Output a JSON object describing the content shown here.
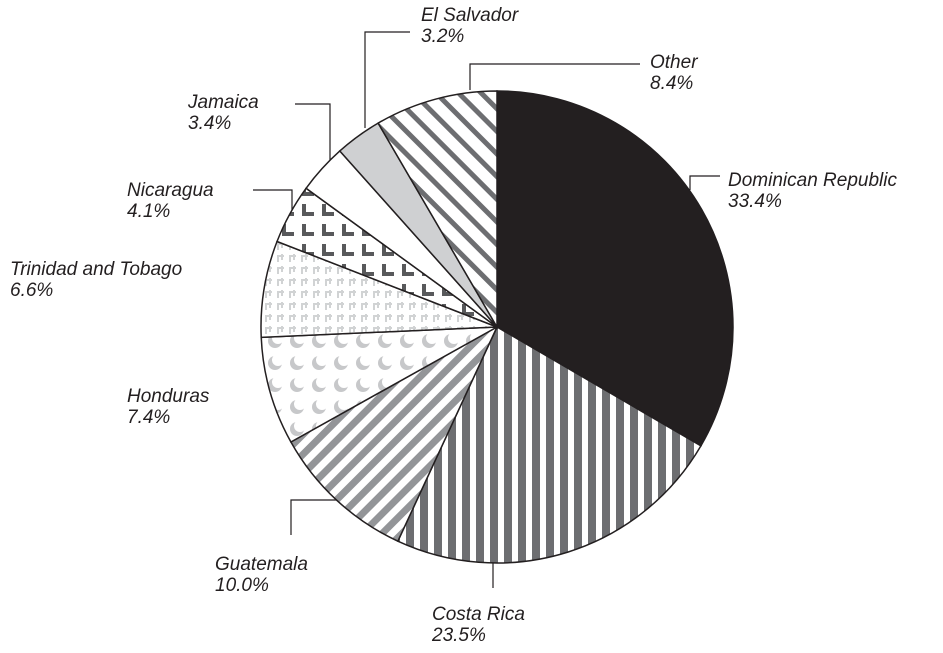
{
  "chart_data": {
    "type": "pie",
    "categories": [
      "Dominican Republic",
      "Costa Rica",
      "Guatemala",
      "Honduras",
      "Trinidad and Tobago",
      "Nicaragua",
      "Jamaica",
      "El Salvador",
      "Other"
    ],
    "values": [
      33.4,
      23.5,
      10.0,
      7.4,
      6.6,
      4.1,
      3.4,
      3.2,
      8.4
    ],
    "value_labels": [
      "33.4%",
      "23.5%",
      "10.0%",
      "7.4%",
      "6.6%",
      "4.1%",
      "3.4%",
      "3.2%",
      "8.4%"
    ],
    "colors": [
      "#231f20",
      "#6d6e71",
      "#939598",
      "#c7c8ca",
      "#d1d3d4",
      "#58595b",
      "#ffffff",
      "#cfd0d2",
      "#6d6e71"
    ]
  }
}
